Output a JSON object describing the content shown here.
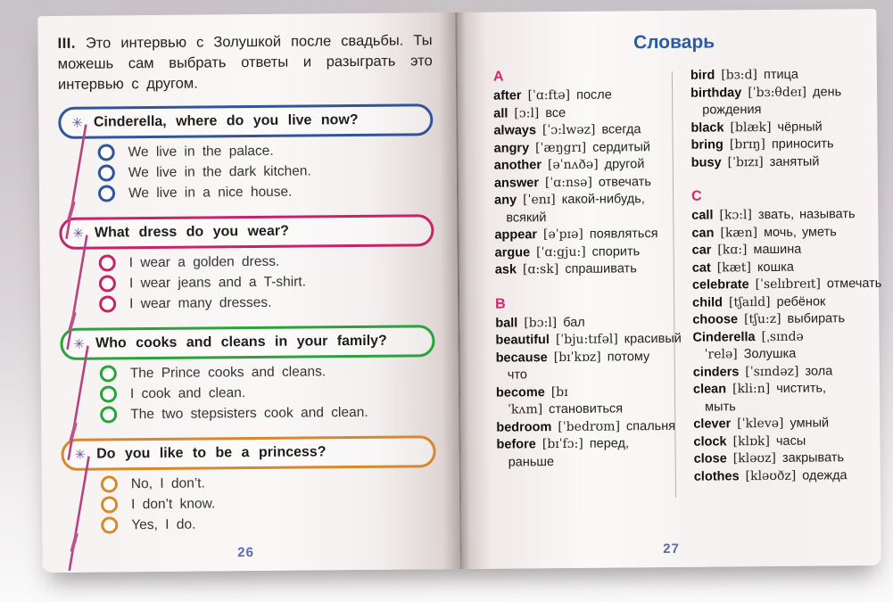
{
  "book": {
    "left_page": {
      "exercise_number": "III.",
      "instruction": "Это интервью с Золушкой после свадьбы. Ты можешь сам выбрать ответы и разыграть это интервью с другом.",
      "page_number": "26",
      "icons": {
        "sparkle-star-icon": "✳",
        "magic-wand-icon": "diagonal magenta wand line with feathered end",
        "answer-circle-icon": "empty colored ring"
      },
      "questions": [
        {
          "accent_color": "#32549B",
          "question": "Cinderella, where do you live now?",
          "options": [
            "We live in the palace.",
            "We live in the dark kitchen.",
            "We live in a nice house."
          ]
        },
        {
          "accent_color": "#C62368",
          "question": "What dress do you wear?",
          "options": [
            "I wear a golden dress.",
            "I wear jeans and a T-shirt.",
            "I wear many dresses."
          ]
        },
        {
          "accent_color": "#2CA23C",
          "question": "Who cooks and cleans in your family?",
          "options": [
            "The Prince cooks and cleans.",
            "I cook and clean.",
            "The two stepsisters cook and clean."
          ]
        },
        {
          "accent_color": "#D8882B",
          "question": "Do you like to be a princess?",
          "options": [
            "No, I don’t.",
            "I don’t know.",
            "Yes, I do."
          ]
        }
      ]
    },
    "right_page": {
      "title": "Словарь",
      "title_color": "#2A5AA8",
      "section_letter_color": "#D9246E",
      "page_number": "27",
      "columns": [
        {
          "groups": [
            {
              "letter": "A",
              "entries": [
                {
                  "word": "after",
                  "transcription": "[ˈɑ:ftə]",
                  "translation": "после"
                },
                {
                  "word": "all",
                  "transcription": "[ɔ:l]",
                  "translation": "все"
                },
                {
                  "word": "always",
                  "transcription": "[ˈɔ:lwəz]",
                  "translation": "всегда"
                },
                {
                  "word": "angry",
                  "transcription": "[ˈæŋgrɪ]",
                  "translation": "сердитый"
                },
                {
                  "word": "another",
                  "transcription": "[əˈnʌðə]",
                  "translation": "другой"
                },
                {
                  "word": "answer",
                  "transcription": "[ˈɑ:nsə]",
                  "translation": "отвечать"
                },
                {
                  "word": "any",
                  "transcription": "[ˈenɪ]",
                  "translation": "какой-нибудь, всякий"
                },
                {
                  "word": "appear",
                  "transcription": "[əˈpɪə]",
                  "translation": "появляться"
                },
                {
                  "word": "argue",
                  "transcription": "[ˈɑ:gju:]",
                  "translation": "спорить"
                },
                {
                  "word": "ask",
                  "transcription": "[ɑ:sk]",
                  "translation": "спрашивать"
                }
              ]
            },
            {
              "letter": "B",
              "entries": [
                {
                  "word": "ball",
                  "transcription": "[bɔ:l]",
                  "translation": "бал"
                },
                {
                  "word": "beautiful",
                  "transcription": "[ˈbju:tɪfəl]",
                  "translation": "красивый"
                },
                {
                  "word": "because",
                  "transcription": "[bɪˈkɒz]",
                  "translation": "потому что"
                },
                {
                  "word": "become",
                  "transcription": "[bɪˈkʌm]",
                  "translation": "становиться"
                },
                {
                  "word": "bedroom",
                  "transcription": "[ˈbedrʊm]",
                  "translation": "спальня"
                },
                {
                  "word": "before",
                  "transcription": "[bɪˈfɔ:]",
                  "translation": "перед, раньше"
                }
              ]
            }
          ]
        },
        {
          "groups": [
            {
              "letter": "",
              "entries": [
                {
                  "word": "bird",
                  "transcription": "[bɜ:d]",
                  "translation": "птица"
                },
                {
                  "word": "birthday",
                  "transcription": "[ˈbɜ:θdeɪ]",
                  "translation": "день рождения"
                },
                {
                  "word": "black",
                  "transcription": "[blæk]",
                  "translation": "чёрный"
                },
                {
                  "word": "bring",
                  "transcription": "[brɪŋ]",
                  "translation": "приносить"
                },
                {
                  "word": "busy",
                  "transcription": "[ˈbɪzɪ]",
                  "translation": "занятый"
                }
              ]
            },
            {
              "letter": "C",
              "entries": [
                {
                  "word": "call",
                  "transcription": "[kɔ:l]",
                  "translation": "звать, называть"
                },
                {
                  "word": "can",
                  "transcription": "[kæn]",
                  "translation": "мочь, уметь"
                },
                {
                  "word": "car",
                  "transcription": "[kɑ:]",
                  "translation": "машина"
                },
                {
                  "word": "cat",
                  "transcription": "[kæt]",
                  "translation": "кошка"
                },
                {
                  "word": "celebrate",
                  "transcription": "[ˈselɪbreɪt]",
                  "translation": "отмечать"
                },
                {
                  "word": "child",
                  "transcription": "[tʃaɪld]",
                  "translation": "ребёнок"
                },
                {
                  "word": "choose",
                  "transcription": "[tʃu:z]",
                  "translation": "выбирать"
                },
                {
                  "word": "Cinderella",
                  "transcription": "[ˌsɪndəˈrelə]",
                  "translation": "Золушка"
                },
                {
                  "word": "cinders",
                  "transcription": "[ˈsɪndəz]",
                  "translation": "зола"
                },
                {
                  "word": "clean",
                  "transcription": "[kli:n]",
                  "translation": "чистить, мыть"
                },
                {
                  "word": "clever",
                  "transcription": "[ˈklevə]",
                  "translation": "умный"
                },
                {
                  "word": "clock",
                  "transcription": "[klɒk]",
                  "translation": "часы"
                },
                {
                  "word": "close",
                  "transcription": "[kləʊz]",
                  "translation": "закрывать"
                },
                {
                  "word": "clothes",
                  "transcription": "[kləʊðz]",
                  "translation": "одежда"
                }
              ]
            }
          ]
        }
      ]
    }
  }
}
